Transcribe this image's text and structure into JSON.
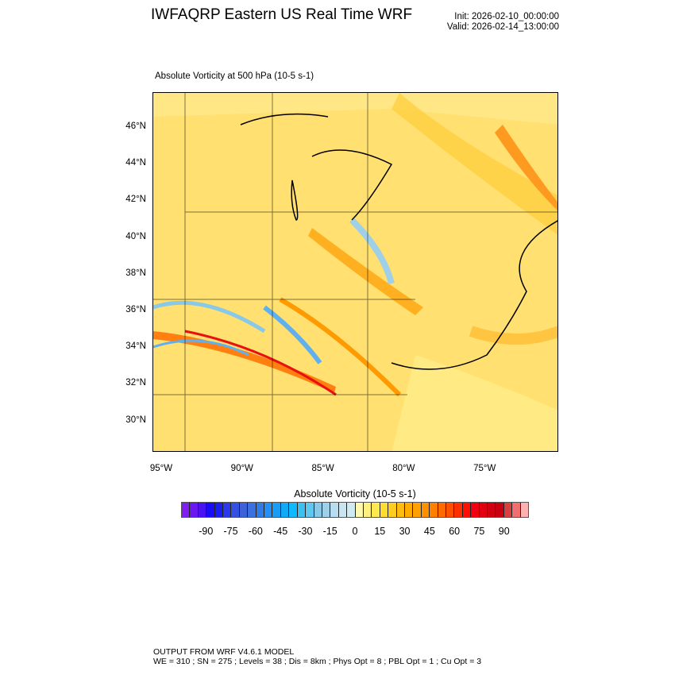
{
  "header": {
    "title": "IWFAQRP Eastern US Real Time WRF",
    "init": "Init: 2026-02-10_00:00:00",
    "valid": "Valid: 2026-02-14_13:00:00"
  },
  "plot": {
    "subtitle": "Absolute Vorticity at 500 hPa   (10-5 s-1)",
    "lat_labels": [
      "46°N",
      "44°N",
      "42°N",
      "40°N",
      "38°N",
      "36°N",
      "34°N",
      "32°N",
      "30°N"
    ],
    "lon_labels": [
      "95°W",
      "90°W",
      "85°W",
      "80°W",
      "75°W"
    ]
  },
  "colorbar": {
    "title": "Absolute Vorticity  (10-5 s-1)",
    "labels": [
      "-90",
      "-75",
      "-60",
      "-45",
      "-30",
      "-15",
      "0",
      "15",
      "30",
      "45",
      "60",
      "75",
      "90"
    ],
    "colors": [
      "#7f1ff0",
      "#6a18f0",
      "#4a14f0",
      "#1a0cf5",
      "#1a1ef0",
      "#2a3ae8",
      "#3450e0",
      "#3d62d8",
      "#3a70e0",
      "#2f7ce8",
      "#2490f5",
      "#1a9cf5",
      "#12aaf5",
      "#10b8ff",
      "#3cc0f0",
      "#60c8f0",
      "#8ac8e8",
      "#a0d0e8",
      "#b8dcf0",
      "#c8e6f2",
      "#d0eaf4",
      "#fff8b0",
      "#fff080",
      "#ffe850",
      "#ffdc30",
      "#ffcc20",
      "#ffbc10",
      "#ffac00",
      "#ffa000",
      "#ff9000",
      "#ff8000",
      "#ff6a00",
      "#ff5000",
      "#ff3000",
      "#ff1000",
      "#f00010",
      "#e00010",
      "#d00010",
      "#c80010",
      "#d84040",
      "#f07070",
      "#ffb0b0"
    ]
  },
  "footer": {
    "line1": "OUTPUT FROM WRF V4.6.1 MODEL",
    "line2": "WE = 310 ; SN = 275 ; Levels = 38 ; Dis = 8km ; Phys Opt = 8 ; PBL Opt = 1 ; Cu Opt = 3"
  }
}
